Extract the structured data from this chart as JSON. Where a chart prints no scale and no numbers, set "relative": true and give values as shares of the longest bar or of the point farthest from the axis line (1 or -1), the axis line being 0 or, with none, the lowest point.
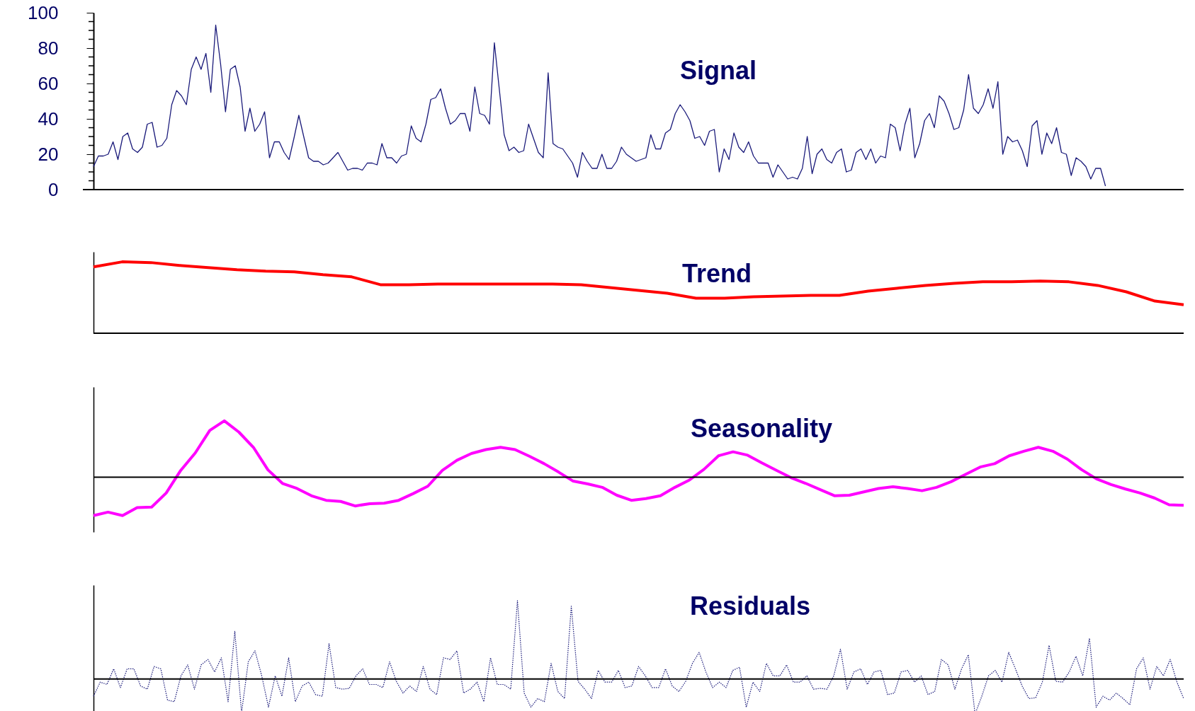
{
  "chart_data": [
    {
      "type": "line",
      "title": "Signal",
      "color": "#1a1a7a",
      "line_style": "solid",
      "ylim": [
        0,
        100
      ],
      "yticks": [
        0,
        {
          "value": 5,
          "label": null
        },
        {
          "value": 10,
          "label": null
        },
        {
          "value": 15,
          "label": null
        },
        20,
        {
          "value": 25,
          "label": null
        },
        {
          "value": 30,
          "label": null
        },
        {
          "value": 35,
          "label": null
        },
        40,
        {
          "value": 45,
          "label": null
        },
        {
          "value": 50,
          "label": null
        },
        {
          "value": 55,
          "label": null
        },
        60,
        {
          "value": 65,
          "label": null
        },
        {
          "value": 70,
          "label": null
        },
        {
          "value": 75,
          "label": null
        },
        80,
        {
          "value": 85,
          "label": null
        },
        {
          "value": 90,
          "label": null
        },
        {
          "value": 95,
          "label": null
        },
        100
      ],
      "categories": [
        null,
        null,
        null,
        null,
        null,
        null,
        null,
        null,
        null,
        null,
        null,
        null,
        null,
        null,
        null,
        null,
        null,
        null,
        null,
        null,
        null,
        null,
        null,
        null,
        null,
        null,
        null,
        null,
        null,
        null,
        null,
        null,
        null,
        null,
        null,
        null,
        null,
        null,
        null,
        null,
        null,
        null,
        null,
        null,
        null,
        null,
        null,
        null,
        null,
        null,
        null,
        null,
        null,
        null,
        null,
        null,
        null,
        null,
        null,
        null,
        null,
        null,
        null,
        null,
        null,
        null,
        null,
        null,
        null,
        null,
        null,
        null,
        null,
        null,
        null,
        null,
        null,
        null,
        null,
        null,
        null,
        null,
        null,
        null,
        null,
        null,
        null,
        null,
        null,
        null,
        null,
        null,
        null,
        null,
        null,
        null,
        null,
        null,
        null,
        null,
        null,
        null,
        null,
        null,
        null,
        null,
        null,
        null,
        null,
        null,
        null,
        null,
        null,
        null,
        null,
        null,
        null,
        null,
        null,
        null,
        null,
        null,
        null,
        null,
        null,
        null,
        null,
        null,
        null,
        null,
        null,
        null,
        null,
        null,
        null,
        null,
        null,
        null,
        null,
        null,
        null,
        null,
        null,
        null,
        null,
        null,
        null,
        null,
        null,
        null,
        null,
        null,
        null,
        null,
        null,
        null,
        null,
        null,
        null,
        null,
        null,
        null,
        null,
        null,
        null,
        null,
        null,
        null,
        null,
        null,
        null,
        null,
        null,
        null,
        null,
        null,
        null,
        null,
        null,
        null,
        null,
        null,
        null,
        null,
        null,
        null,
        null,
        null,
        null,
        null,
        null,
        null,
        null,
        null,
        null,
        null,
        null,
        null,
        null,
        null,
        null,
        null,
        null,
        null,
        null,
        null,
        null,
        null,
        null,
        null,
        null,
        null,
        null,
        null,
        null,
        null,
        null,
        null,
        null,
        null,
        null,
        null,
        null,
        null
      ],
      "values": [
        13,
        19,
        19,
        20,
        27,
        17,
        30,
        32,
        23,
        21,
        24,
        37,
        38,
        24,
        25,
        29,
        48,
        56,
        53,
        48,
        68,
        75,
        68,
        77,
        55,
        93,
        71,
        44,
        68,
        70,
        58,
        33,
        46,
        33,
        37,
        44,
        18,
        27,
        27,
        21,
        17,
        29,
        42,
        30,
        18,
        16,
        16,
        14,
        15,
        18,
        21,
        16,
        11,
        12,
        12,
        11,
        15,
        15,
        14,
        26,
        18,
        18,
        15,
        19,
        20,
        36,
        29,
        27,
        37,
        51,
        52,
        57,
        46,
        37,
        39,
        43,
        43,
        33,
        58,
        43,
        42,
        37,
        83,
        57,
        31,
        22,
        24,
        21,
        22,
        37,
        29,
        21,
        18,
        66,
        26,
        24,
        23,
        19,
        15,
        7,
        21,
        16,
        12,
        12,
        20,
        12,
        12,
        16,
        24,
        20,
        18,
        16,
        17,
        18,
        31,
        23,
        23,
        32,
        34,
        43,
        48,
        44,
        39,
        29,
        30,
        25,
        33,
        34,
        10,
        23,
        17,
        32,
        24,
        21,
        27,
        19,
        15,
        15,
        15,
        7,
        14,
        10,
        6,
        7,
        6,
        12,
        30,
        9,
        20,
        23,
        17,
        15,
        21,
        23,
        10,
        11,
        21,
        23,
        17,
        23,
        15,
        19,
        18,
        37,
        35,
        22,
        37,
        46,
        18,
        26,
        39,
        43,
        35,
        53,
        50,
        43,
        34,
        35,
        45,
        65,
        46,
        43,
        48,
        57,
        46,
        61,
        20,
        30,
        27,
        28,
        22,
        13,
        36,
        39,
        20,
        32,
        26,
        35,
        21,
        20,
        8,
        18,
        16,
        13,
        6,
        12,
        12,
        2,
        null,
        null,
        null,
        null,
        null,
        null,
        null,
        null,
        null,
        null,
        null,
        null,
        null,
        null,
        null,
        null
      ]
    },
    {
      "type": "line",
      "title": "Trend",
      "color": "#ff0000",
      "line_style": "solid",
      "relative": true,
      "categories": [
        null,
        null,
        null,
        null,
        null,
        null,
        null,
        null,
        null,
        null,
        null,
        null,
        null,
        null,
        null,
        null,
        null,
        null,
        null,
        null,
        null,
        null,
        null,
        null,
        null,
        null,
        null,
        null,
        null,
        null,
        null,
        null,
        null,
        null,
        null,
        null,
        null,
        null,
        null
      ],
      "values": [
        0.93,
        1,
        0.99,
        0.95,
        0.92,
        0.89,
        0.87,
        0.86,
        0.82,
        0.79,
        0.68,
        0.68,
        0.69,
        0.69,
        0.69,
        0.69,
        0.69,
        0.68,
        0.64,
        0.6,
        0.56,
        0.49,
        0.49,
        0.51,
        0.52,
        0.53,
        0.53,
        0.59,
        0.63,
        0.67,
        0.7,
        0.72,
        0.72,
        0.73,
        0.72,
        0.67,
        0.58,
        0.45,
        0.4
      ]
    },
    {
      "type": "line",
      "title": "Seasonality",
      "color": "#ff00ff",
      "line_style": "solid",
      "relative": true,
      "categories": [
        null,
        null,
        null,
        null,
        null,
        null,
        null,
        null,
        null,
        null,
        null,
        null,
        null,
        null,
        null,
        null,
        null,
        null,
        null,
        null,
        null,
        null,
        null,
        null,
        null,
        null,
        null,
        null,
        null,
        null,
        null,
        null,
        null,
        null,
        null,
        null,
        null,
        null,
        null,
        null,
        null,
        null,
        null,
        null,
        null,
        null,
        null,
        null,
        null,
        null,
        null,
        null,
        null,
        null,
        null,
        null,
        null,
        null,
        null,
        null,
        null,
        null,
        null,
        null,
        null,
        null,
        null,
        null,
        null,
        null,
        null,
        null,
        null,
        null,
        null,
        null
      ],
      "values": [
        -0.68,
        -0.62,
        -0.68,
        -0.54,
        -0.53,
        -0.28,
        0.12,
        0.43,
        0.83,
        1,
        0.8,
        0.53,
        0.13,
        -0.11,
        -0.2,
        -0.33,
        -0.41,
        -0.43,
        -0.51,
        -0.47,
        -0.46,
        -0.41,
        -0.29,
        -0.16,
        0.12,
        0.3,
        0.42,
        0.49,
        0.53,
        0.49,
        0.37,
        0.24,
        0.09,
        -0.07,
        -0.12,
        -0.18,
        -0.32,
        -0.41,
        -0.38,
        -0.33,
        -0.18,
        -0.05,
        0.14,
        0.38,
        0.45,
        0.39,
        0.25,
        0.12,
        -0.01,
        -0.11,
        -0.22,
        -0.33,
        -0.32,
        -0.26,
        -0.2,
        -0.17,
        -0.2,
        -0.24,
        -0.18,
        -0.08,
        0.05,
        0.18,
        0.24,
        0.38,
        0.46,
        0.53,
        0.46,
        0.32,
        0.13,
        -0.03,
        -0.13,
        -0.21,
        -0.28,
        -0.37,
        -0.49,
        -0.5
      ]
    },
    {
      "type": "line",
      "title": "Residuals",
      "color": "#1a1a7a",
      "line_style": "dotted",
      "relative": true,
      "categories": [
        null,
        null,
        null,
        null,
        null,
        null,
        null,
        null,
        null,
        null,
        null,
        null,
        null,
        null,
        null,
        null,
        null,
        null,
        null,
        null,
        null,
        null,
        null,
        null,
        null,
        null,
        null,
        null,
        null,
        null,
        null,
        null,
        null,
        null,
        null,
        null,
        null,
        null,
        null,
        null,
        null,
        null,
        null,
        null,
        null,
        null,
        null,
        null,
        null,
        null,
        null,
        null,
        null,
        null,
        null,
        null,
        null,
        null,
        null,
        null,
        null,
        null,
        null,
        null,
        null,
        null,
        null,
        null,
        null,
        null,
        null,
        null,
        null,
        null,
        null,
        null,
        null,
        null,
        null,
        null,
        null,
        null,
        null,
        null,
        null,
        null,
        null,
        null,
        null,
        null,
        null,
        null,
        null,
        null,
        null,
        null,
        null,
        null,
        null,
        null,
        null,
        null,
        null,
        null,
        null,
        null,
        null,
        null,
        null,
        null,
        null,
        null,
        null,
        null,
        null,
        null,
        null,
        null,
        null,
        null,
        null,
        null,
        null,
        null,
        null,
        null,
        null,
        null,
        null,
        null,
        null,
        null,
        null,
        null,
        null,
        null,
        null,
        null,
        null,
        null,
        null,
        null,
        null,
        null,
        null,
        null,
        null,
        null,
        null,
        null,
        null,
        null,
        null,
        null,
        null,
        null,
        null,
        null,
        null,
        null,
        null,
        null,
        null
      ],
      "values": [
        -0.22,
        -0.04,
        -0.07,
        0.13,
        -0.11,
        0.13,
        0.13,
        -0.09,
        -0.13,
        0.16,
        0.13,
        -0.27,
        -0.29,
        0.04,
        0.18,
        -0.13,
        0.18,
        0.25,
        0.09,
        0.27,
        -0.29,
        0.61,
        -0.43,
        0.22,
        0.36,
        0.04,
        -0.36,
        0.04,
        -0.22,
        0.27,
        -0.29,
        -0.09,
        -0.04,
        -0.2,
        -0.22,
        0.45,
        -0.11,
        -0.13,
        -0.12,
        0.04,
        0.13,
        -0.07,
        -0.07,
        -0.11,
        0.22,
        -0.03,
        -0.18,
        -0.09,
        -0.16,
        0.16,
        -0.13,
        -0.2,
        0.27,
        0.25,
        0.36,
        -0.18,
        -0.13,
        -0.04,
        -0.29,
        0.27,
        -0.07,
        -0.07,
        -0.13,
        1,
        -0.18,
        -0.36,
        -0.25,
        -0.29,
        0.2,
        -0.16,
        -0.25,
        0.93,
        -0.03,
        -0.13,
        -0.25,
        0.11,
        -0.04,
        -0.04,
        0.11,
        -0.11,
        -0.09,
        0.16,
        0.04,
        -0.11,
        -0.11,
        0.13,
        -0.09,
        -0.16,
        -0.03,
        0.2,
        0.34,
        0.09,
        -0.11,
        -0.04,
        -0.11,
        0.11,
        0.15,
        -0.36,
        -0.04,
        -0.16,
        0.2,
        0.04,
        0.04,
        0.18,
        -0.04,
        -0.04,
        0.04,
        -0.13,
        -0.12,
        -0.13,
        0.04,
        0.38,
        -0.13,
        0.09,
        0.13,
        -0.07,
        0.09,
        0.11,
        -0.2,
        -0.18,
        0.09,
        0.11,
        -0.04,
        0.04,
        -0.2,
        -0.16,
        0.25,
        0.18,
        -0.13,
        0.13,
        0.31,
        -0.45,
        -0.22,
        0.04,
        0.11,
        -0.04,
        0.34,
        0.13,
        -0.09,
        -0.25,
        -0.24,
        -0.04,
        0.43,
        -0.03,
        -0.04,
        0.09,
        0.29,
        0.04,
        0.52,
        -0.36,
        -0.22,
        -0.27,
        -0.18,
        -0.25,
        -0.33,
        0.13,
        0.27,
        -0.13,
        0.16,
        0.04,
        0.25,
        -0.04,
        -0.25
      ]
    }
  ]
}
